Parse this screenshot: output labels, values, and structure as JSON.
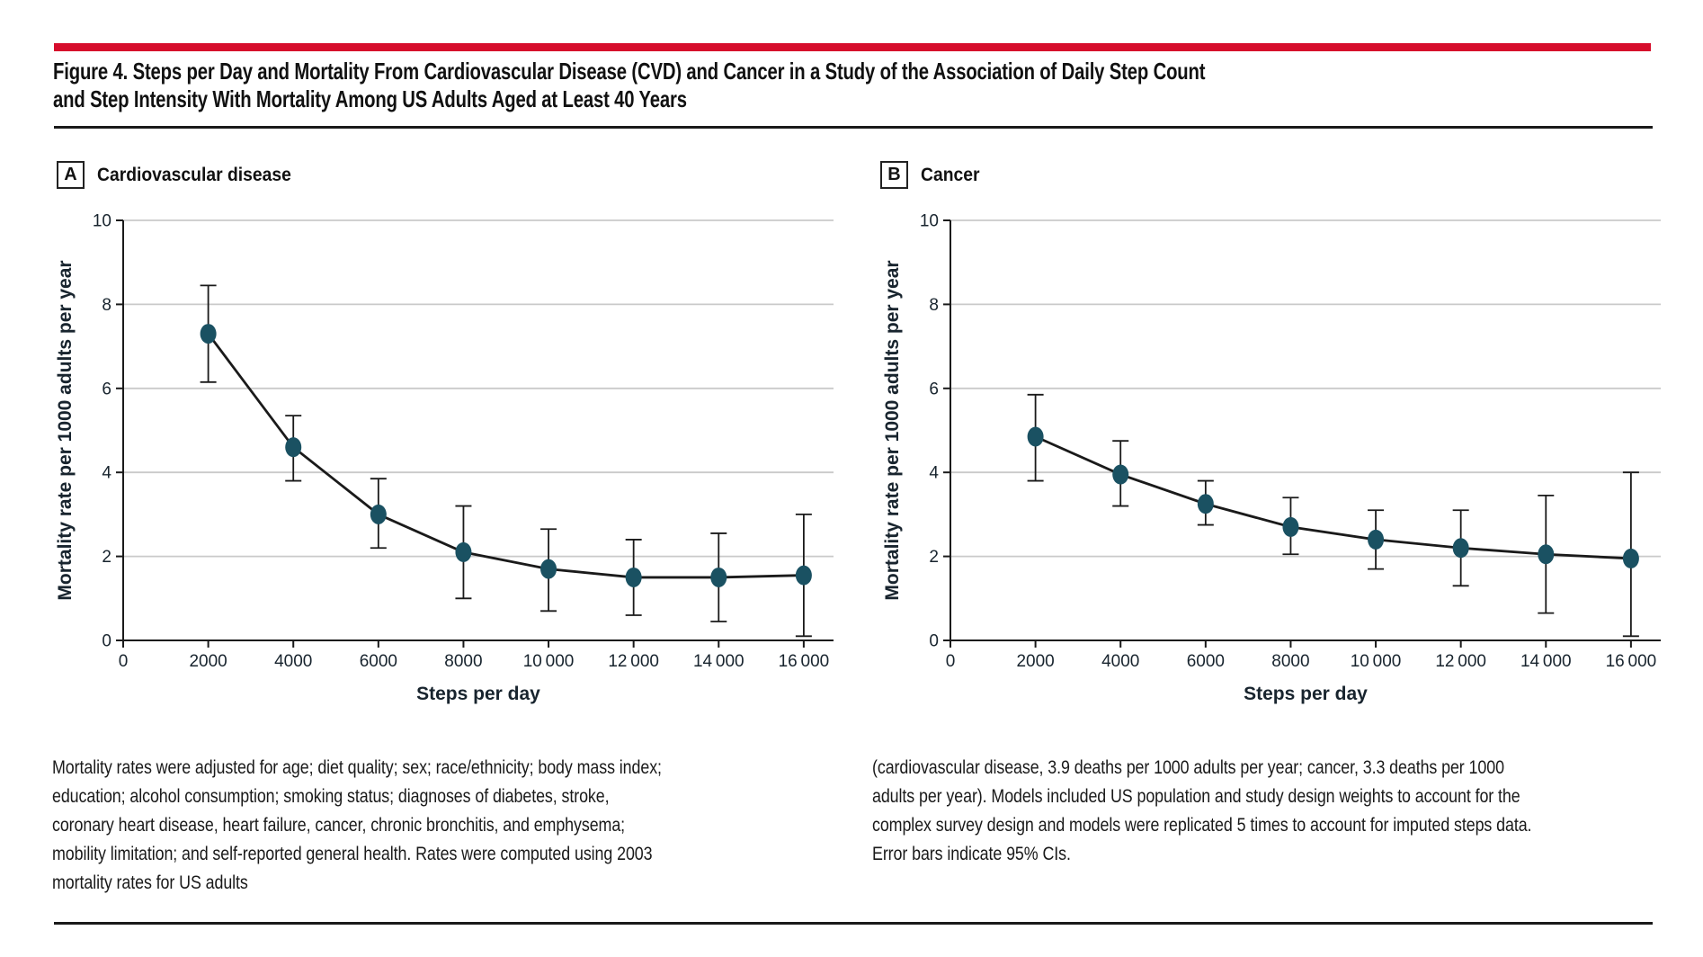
{
  "figure": {
    "accent_color": "#d60d2c",
    "title_line1": "Figure 4. Steps per Day and Mortality From Cardiovascular Disease (CVD) and Cancer in a Study of the Association of Daily Step Count",
    "title_line2": "and Step Intensity With Mortality Among US Adults Aged at Least 40 Years"
  },
  "chart_data": [
    {
      "type": "line",
      "panel_label": "A",
      "title": "Cardiovascular disease",
      "xlabel": "Steps per day",
      "ylabel": "Mortality rate per 1000 adults per year",
      "x": [
        2000,
        4000,
        6000,
        8000,
        10000,
        12000,
        14000,
        16000
      ],
      "series": [
        {
          "name": "Mortality rate (95% CI)",
          "values": [
            7.3,
            4.6,
            3.0,
            2.1,
            1.7,
            1.5,
            1.5,
            1.55
          ],
          "ci_low": [
            6.15,
            3.8,
            2.2,
            1.0,
            0.7,
            0.6,
            0.45,
            0.1
          ],
          "ci_high": [
            8.45,
            5.35,
            3.85,
            3.2,
            2.65,
            2.4,
            2.55,
            3.0
          ]
        }
      ],
      "xlim": [
        0,
        16700
      ],
      "ylim": [
        0,
        10
      ],
      "x_tick_values": [
        0,
        2000,
        4000,
        6000,
        8000,
        10000,
        12000,
        14000,
        16000
      ],
      "x_tick_labels": [
        "0",
        "2000",
        "4000",
        "6000",
        "8000",
        "10 000",
        "12 000",
        "14 000",
        "16 000"
      ],
      "y_tick_values": [
        0,
        2,
        4,
        6,
        8,
        10
      ],
      "grid": true,
      "legend_position": "none",
      "marker_color": "#1a5162",
      "line_color": "#1a1a1a",
      "grid_color": "#cacaca"
    },
    {
      "type": "line",
      "panel_label": "B",
      "title": "Cancer",
      "xlabel": "Steps per day",
      "ylabel": "Mortality rate per 1000 adults per year",
      "x": [
        2000,
        4000,
        6000,
        8000,
        10000,
        12000,
        14000,
        16000
      ],
      "series": [
        {
          "name": "Mortality rate (95% CI)",
          "values": [
            4.85,
            3.95,
            3.25,
            2.7,
            2.4,
            2.2,
            2.05,
            1.95
          ],
          "ci_low": [
            3.8,
            3.2,
            2.75,
            2.05,
            1.7,
            1.3,
            0.65,
            0.1
          ],
          "ci_high": [
            5.85,
            4.75,
            3.8,
            3.4,
            3.1,
            3.1,
            3.45,
            4.0
          ]
        }
      ],
      "xlim": [
        0,
        16700
      ],
      "ylim": [
        0,
        10
      ],
      "x_tick_values": [
        0,
        2000,
        4000,
        6000,
        8000,
        10000,
        12000,
        14000,
        16000
      ],
      "x_tick_labels": [
        "0",
        "2000",
        "4000",
        "6000",
        "8000",
        "10 000",
        "12 000",
        "14 000",
        "16 000"
      ],
      "y_tick_values": [
        0,
        2,
        4,
        6,
        8,
        10
      ],
      "grid": true,
      "legend_position": "none",
      "marker_color": "#1a5162",
      "line_color": "#1a1a1a",
      "grid_color": "#cacaca"
    }
  ],
  "footnote": {
    "left": "Mortality rates were adjusted for age; diet quality; sex; race/ethnicity; body mass index; education; alcohol consumption; smoking status; diagnoses of diabetes, stroke, coronary heart disease, heart failure, cancer, chronic bronchitis, and emphysema; mobility limitation; and self-reported general health. Rates were computed using 2003 mortality rates for US adults",
    "right": "(cardiovascular disease, 3.9 deaths per 1000 adults per year; cancer, 3.3 deaths per 1000 adults per year). Models included US population and study design weights to account for the complex survey design and models were replicated 5 times to account for imputed steps data. Error bars indicate 95% CIs."
  }
}
